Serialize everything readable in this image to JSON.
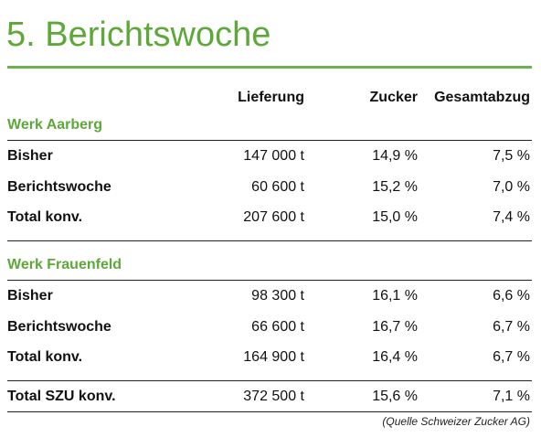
{
  "header": {
    "title": "5. Berichtswoche"
  },
  "table": {
    "columns": [
      "Lieferung",
      "Zucker",
      "Gesamtabzug"
    ],
    "sections": [
      {
        "name": "Werk Aarberg",
        "rows": [
          [
            "Bisher",
            "147 000 t",
            "14,9 %",
            "7,5 %"
          ],
          [
            "Berichtswoche",
            "60 600 t",
            "15,2 %",
            "7,0 %"
          ],
          [
            "Total konv.",
            "207 600 t",
            "15,0 %",
            "7,4 %"
          ]
        ]
      },
      {
        "name": "Werk Frauenfeld",
        "rows": [
          [
            "Bisher",
            "98 300 t",
            "16,1 %",
            "6,6 %"
          ],
          [
            "Berichtswoche",
            "66 600 t",
            "16,7 %",
            "6,7 %"
          ],
          [
            "Total konv.",
            "164 900 t",
            "16,4 %",
            "6,7 %"
          ]
        ]
      }
    ],
    "total": [
      "Total SZU konv.",
      "372 500 t",
      "15,6 %",
      "7,1 %"
    ]
  },
  "source": "(Quelle Schweizer Zucker AG)"
}
